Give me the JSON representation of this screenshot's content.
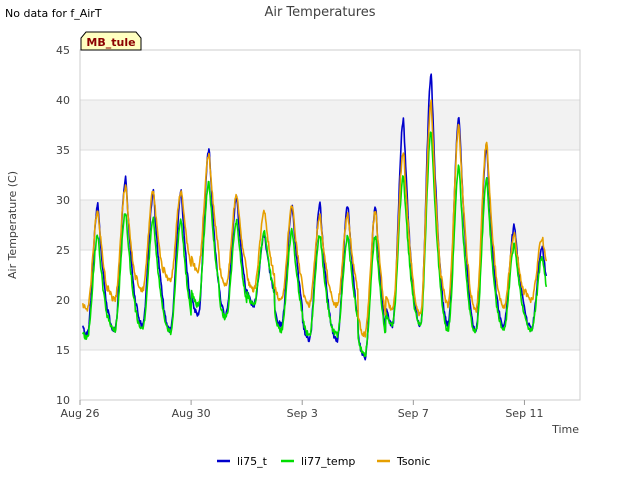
{
  "notice": "No data for f_AirT",
  "badge": "MB_tule",
  "colors": {
    "li75_t": "#0000cc",
    "li77_temp": "#00dd00",
    "Tsonic": "#e69f00",
    "band": "#f2f2f2",
    "grid": "#dddddd"
  },
  "chart_data": {
    "type": "line",
    "title": "Air Temperatures",
    "xlabel": "Time",
    "ylabel": "Air Temperature (C)",
    "xlim": [
      "2023-08-26",
      "2023-09-13"
    ],
    "ylim": [
      10,
      45
    ],
    "x_ticks": [
      {
        "date": "2023-08-26",
        "label": "Aug 26"
      },
      {
        "date": "2023-08-30",
        "label": "Aug 30"
      },
      {
        "date": "2023-09-03",
        "label": "Sep 3"
      },
      {
        "date": "2023-09-07",
        "label": "Sep 7"
      },
      {
        "date": "2023-09-11",
        "label": "Sep 11"
      }
    ],
    "y_ticks": [
      10,
      15,
      20,
      25,
      30,
      35,
      40,
      45
    ],
    "grid": true,
    "legend_position": "bottom",
    "series": [
      {
        "name": "li75_t",
        "color": "#0000cc",
        "daily_min": [
          16.5,
          17.0,
          17.5,
          17.0,
          18.5,
          18.5,
          19.5,
          17.5,
          16.0,
          16.0,
          14.2,
          17.5,
          17.5,
          17.5,
          17.0,
          17.5,
          17.2
        ],
        "daily_max": [
          29.5,
          32.2,
          30.8,
          30.8,
          35.2,
          30.3,
          26.5,
          29.3,
          29.5,
          29.5,
          29.3,
          38.2,
          42.7,
          38.5,
          35.5,
          27.5,
          25.5
        ],
        "end_day": 16.8
      },
      {
        "name": "li77_temp",
        "color": "#00dd00",
        "daily_min": [
          16.2,
          17.0,
          17.0,
          16.8,
          19.5,
          18.2,
          19.5,
          17.0,
          16.5,
          16.5,
          14.5,
          17.5,
          17.5,
          17.0,
          16.8,
          17.0,
          17.0
        ],
        "daily_max": [
          26.5,
          28.8,
          28.0,
          28.0,
          31.8,
          28.0,
          26.8,
          27.0,
          26.5,
          26.5,
          26.5,
          32.5,
          37.0,
          33.5,
          32.0,
          25.5,
          24.3
        ],
        "end_day": 16.8
      },
      {
        "name": "Tsonic",
        "color": "#e69f00",
        "daily_min": [
          19.0,
          20.0,
          21.0,
          22.0,
          23.0,
          21.5,
          21.0,
          20.0,
          19.5,
          19.5,
          16.5,
          19.0,
          18.5,
          19.5,
          19.0,
          19.3,
          20.0
        ],
        "daily_max": [
          29.0,
          31.5,
          31.0,
          31.0,
          34.5,
          30.5,
          28.8,
          29.5,
          28.5,
          28.5,
          29.0,
          35.0,
          39.8,
          37.5,
          36.0,
          26.5,
          26.3
        ],
        "end_day": 16.8
      }
    ]
  }
}
